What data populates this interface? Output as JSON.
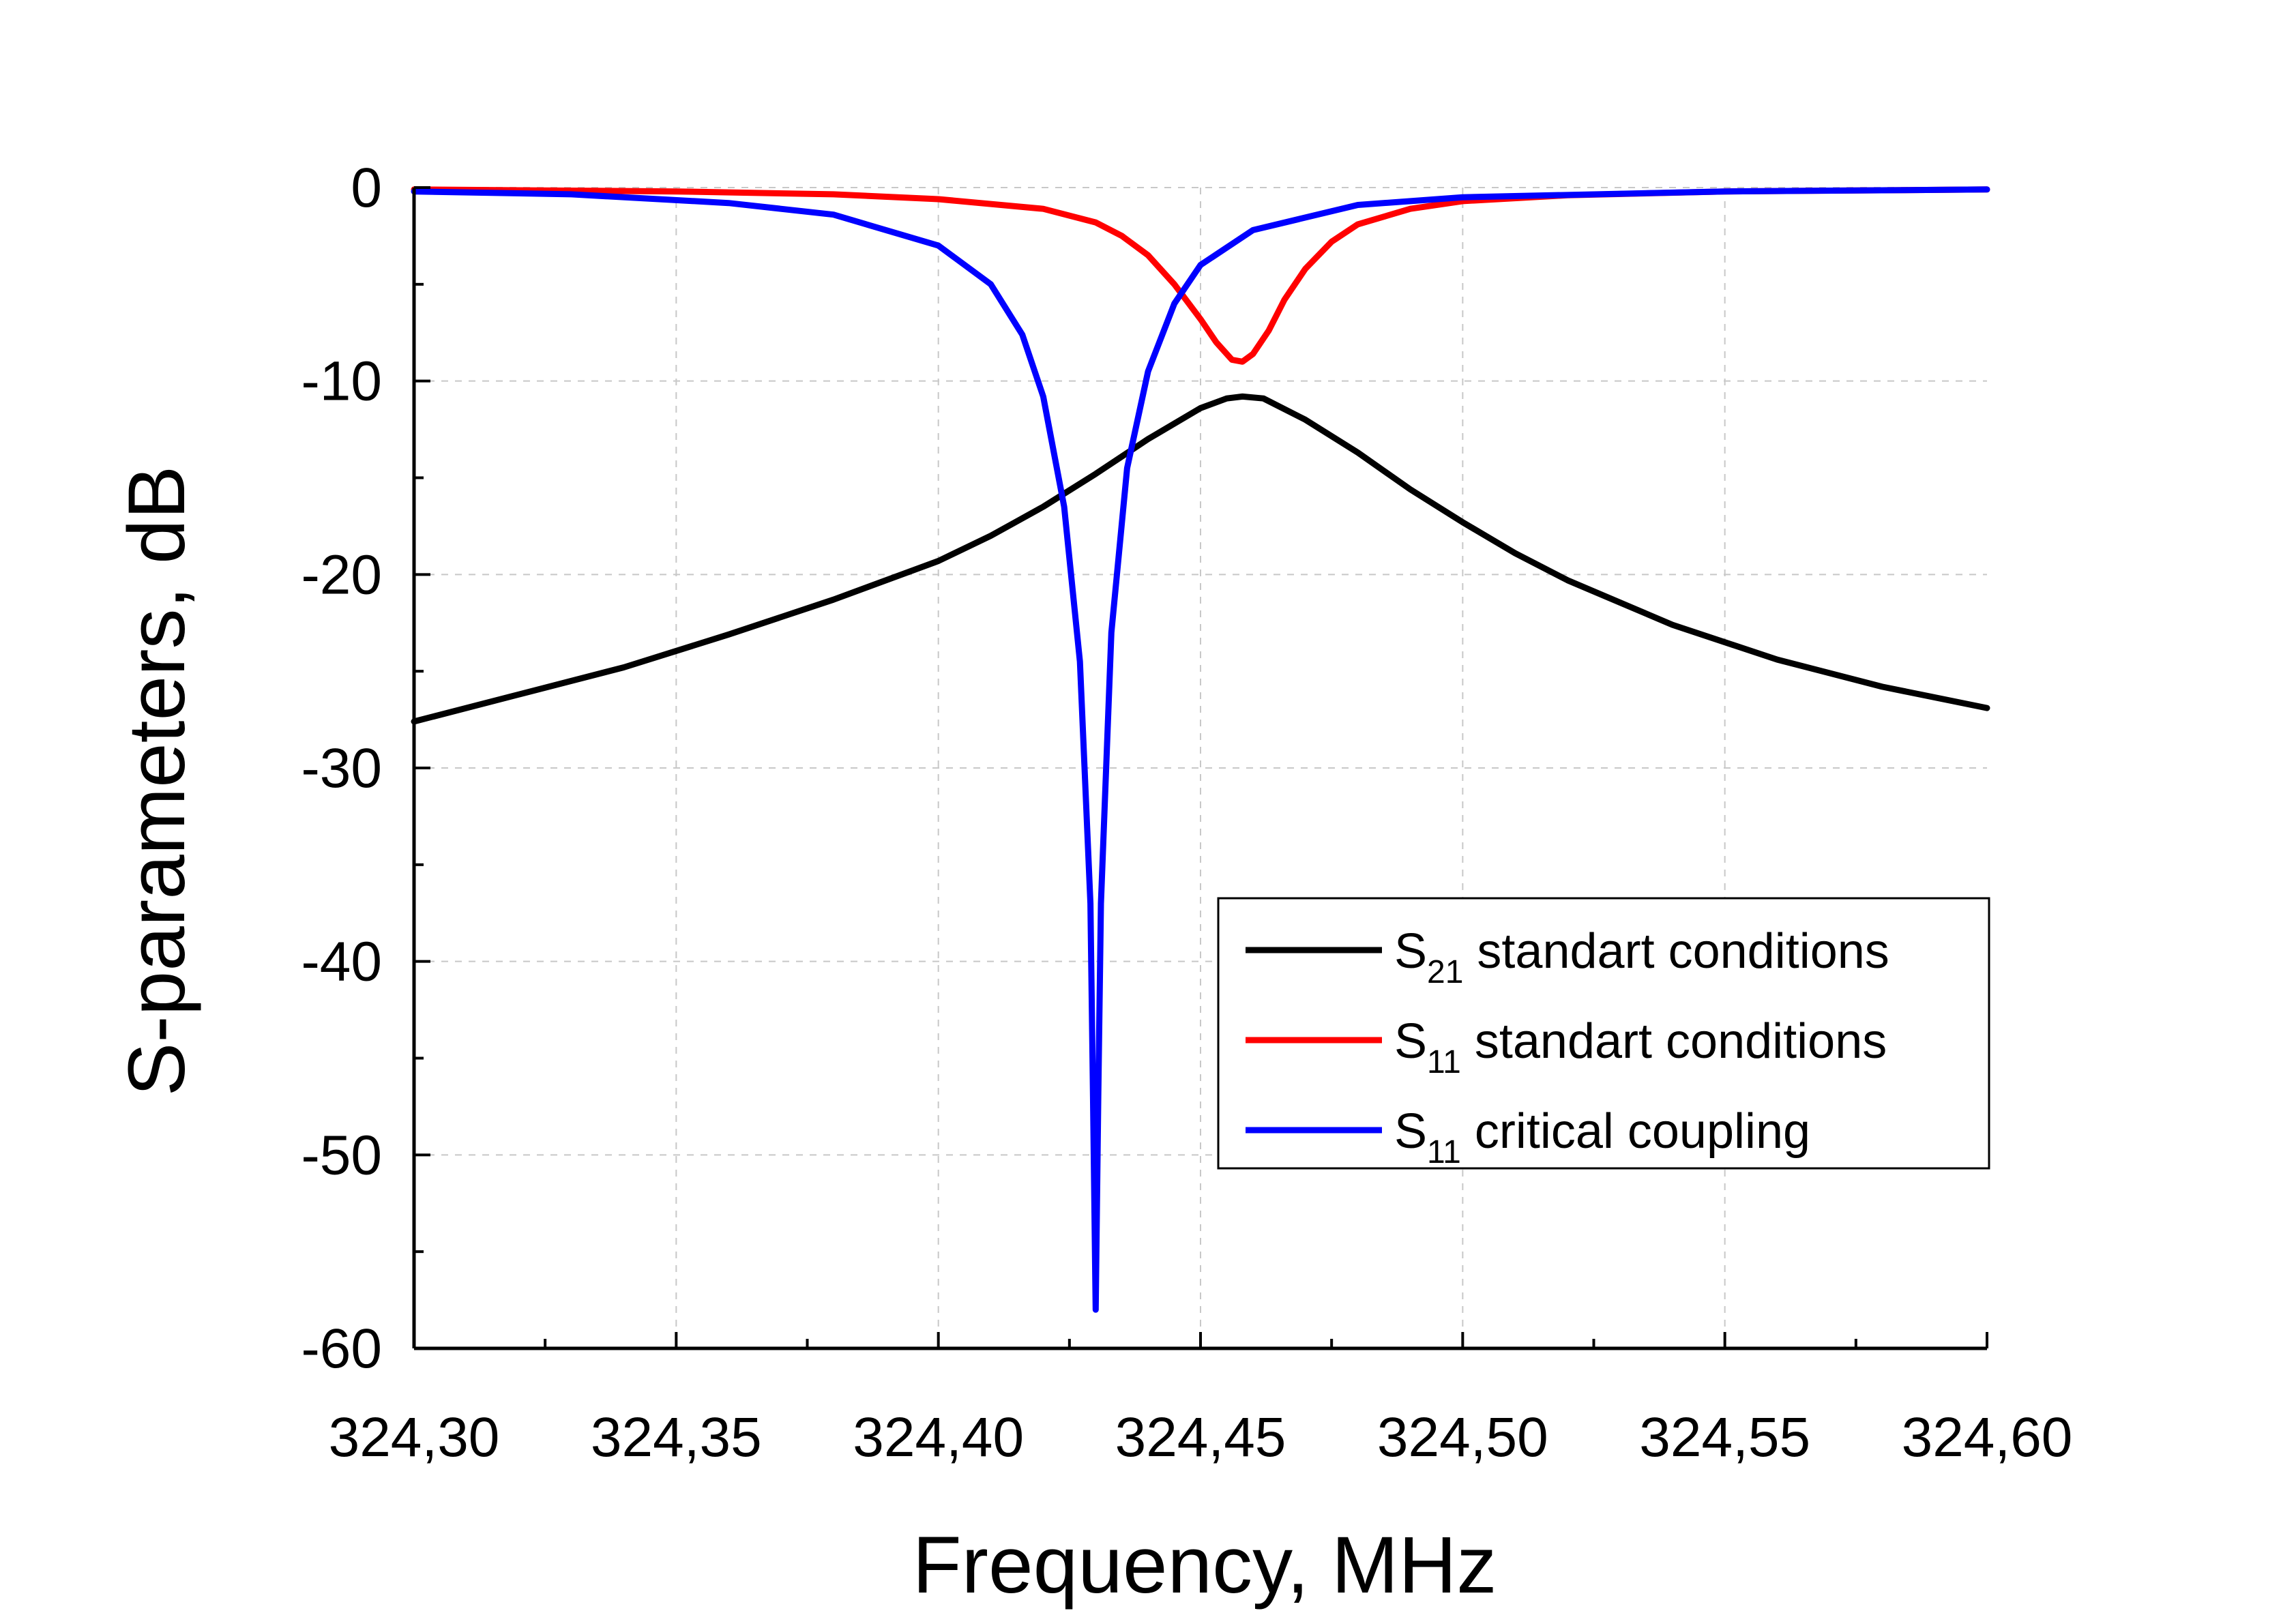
{
  "chart_data": {
    "type": "line",
    "title": "",
    "xlabel": "Frequency, MHz",
    "ylabel": "S-parameters, dB",
    "xlim": [
      324.3,
      324.6
    ],
    "ylim": [
      -60,
      0
    ],
    "x_ticks": [
      324.3,
      324.35,
      324.4,
      324.45,
      324.5,
      324.55,
      324.6
    ],
    "x_tick_labels": [
      "324,30",
      "324,35",
      "324,40",
      "324,45",
      "324,50",
      "324,55",
      "324,60"
    ],
    "y_ticks": [
      0,
      -10,
      -20,
      -30,
      -40,
      -50,
      -60
    ],
    "y_tick_labels": [
      "0",
      "-10",
      "-20",
      "-30",
      "-40",
      "-50",
      "-60"
    ],
    "grid": true,
    "legend_position": "lower-right",
    "series": [
      {
        "name": "S21 standart conditions",
        "legend_main": "S",
        "legend_sub": "21",
        "legend_rest": " standart conditions",
        "color": "#000000",
        "x": [
          324.3,
          324.32,
          324.34,
          324.36,
          324.38,
          324.4,
          324.41,
          324.42,
          324.43,
          324.44,
          324.45,
          324.455,
          324.458,
          324.462,
          324.47,
          324.48,
          324.49,
          324.5,
          324.51,
          324.52,
          324.54,
          324.56,
          324.58,
          324.6
        ],
        "y": [
          -27.6,
          -26.2,
          -24.8,
          -23.1,
          -21.3,
          -19.3,
          -18.0,
          -16.5,
          -14.8,
          -13.0,
          -11.4,
          -10.9,
          -10.8,
          -10.9,
          -12.0,
          -13.7,
          -15.6,
          -17.3,
          -18.9,
          -20.3,
          -22.6,
          -24.4,
          -25.8,
          -26.9
        ]
      },
      {
        "name": "S11 standart conditions",
        "legend_main": "S",
        "legend_sub": "11",
        "legend_rest": " standart conditions",
        "color": "#ff0000",
        "x": [
          324.3,
          324.35,
          324.38,
          324.4,
          324.42,
          324.43,
          324.435,
          324.44,
          324.445,
          324.45,
          324.453,
          324.456,
          324.458,
          324.46,
          324.463,
          324.466,
          324.47,
          324.475,
          324.48,
          324.49,
          324.5,
          324.52,
          324.55,
          324.6
        ],
        "y": [
          -0.1,
          -0.2,
          -0.35,
          -0.6,
          -1.1,
          -1.8,
          -2.5,
          -3.5,
          -5.0,
          -6.8,
          -8.0,
          -8.9,
          -9.0,
          -8.6,
          -7.4,
          -5.8,
          -4.2,
          -2.8,
          -1.9,
          -1.1,
          -0.7,
          -0.4,
          -0.2,
          -0.1
        ]
      },
      {
        "name": "S11 critical coupling",
        "legend_main": "S",
        "legend_sub": "11",
        "legend_rest": " critical coupling",
        "color": "#0000ff",
        "x": [
          324.3,
          324.33,
          324.36,
          324.38,
          324.4,
          324.41,
          324.416,
          324.42,
          324.424,
          324.427,
          324.429,
          324.4295,
          324.43,
          324.4305,
          324.431,
          324.433,
          324.436,
          324.44,
          324.445,
          324.45,
          324.46,
          324.48,
          324.5,
          324.55,
          324.6
        ],
        "y": [
          -0.2,
          -0.35,
          -0.8,
          -1.4,
          -3.0,
          -5.0,
          -7.6,
          -10.8,
          -16.5,
          -24.5,
          -37.0,
          -47.0,
          -58.0,
          -47.0,
          -37.0,
          -23.0,
          -14.5,
          -9.5,
          -6.0,
          -4.0,
          -2.2,
          -0.9,
          -0.5,
          -0.2,
          -0.1
        ]
      }
    ]
  }
}
